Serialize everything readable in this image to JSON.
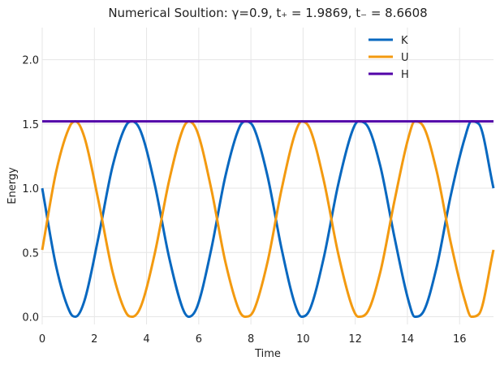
{
  "chart_data": {
    "type": "line",
    "title": "Numerical Soultion: γ=0.9, t₊ = 1.9869, t₋ = 8.6608",
    "xlabel": "Time",
    "ylabel": "Energy",
    "xlim": [
      0,
      17.3
    ],
    "ylim": [
      -0.06,
      2.25
    ],
    "xticks": [
      0,
      2,
      4,
      6,
      8,
      10,
      12,
      14,
      16
    ],
    "yticks": [
      0.0,
      0.5,
      1.0,
      1.5,
      2.0
    ],
    "xtick_labels": [
      "0",
      "2",
      "4",
      "6",
      "8",
      "10",
      "12",
      "14",
      "16"
    ],
    "ytick_labels": [
      "0.0",
      "0.5",
      "1.0",
      "1.5",
      "2.0"
    ],
    "grid": true,
    "legend_position": "top-right",
    "series": [
      {
        "name": "K",
        "color": "#0868c0",
        "x": [
          0,
          0.54,
          1.08,
          1.27,
          1.62,
          2.16,
          2.7,
          3.24,
          3.45,
          3.78,
          4.32,
          4.86,
          5.4,
          5.62,
          5.94,
          6.48,
          7.02,
          7.56,
          7.78,
          8.1,
          8.64,
          9.18,
          9.72,
          9.95,
          10.26,
          10.8,
          11.34,
          11.88,
          12.12,
          12.42,
          12.96,
          13.5,
          14.04,
          14.28,
          14.58,
          15.12,
          15.66,
          16.2,
          16.45,
          16.74,
          17.3
        ],
        "y": [
          1.0,
          0.386,
          0.029,
          0.0,
          0.125,
          0.622,
          1.173,
          1.497,
          1.52,
          1.441,
          1.023,
          0.466,
          0.057,
          0.0,
          0.078,
          0.525,
          1.092,
          1.475,
          1.52,
          1.475,
          1.092,
          0.525,
          0.078,
          0.0,
          0.057,
          0.466,
          1.023,
          1.441,
          1.52,
          1.497,
          1.173,
          0.622,
          0.125,
          0.0,
          0.029,
          0.386,
          0.942,
          1.391,
          1.52,
          1.5,
          1.0
        ]
      },
      {
        "name": "U",
        "color": "#f39a10",
        "x": [
          0,
          0.54,
          1.08,
          1.27,
          1.62,
          2.16,
          2.7,
          3.24,
          3.45,
          3.78,
          4.32,
          4.86,
          5.4,
          5.62,
          5.94,
          6.48,
          7.02,
          7.56,
          7.78,
          8.1,
          8.64,
          9.18,
          9.72,
          9.95,
          10.26,
          10.8,
          11.34,
          11.88,
          12.12,
          12.42,
          12.96,
          13.5,
          14.04,
          14.28,
          14.58,
          15.12,
          15.66,
          16.2,
          16.45,
          16.74,
          17.3
        ],
        "y": [
          0.52,
          1.134,
          1.491,
          1.52,
          1.395,
          0.898,
          0.347,
          0.023,
          0.0,
          0.079,
          0.497,
          1.054,
          1.463,
          1.52,
          1.442,
          0.995,
          0.428,
          0.045,
          0.0,
          0.045,
          0.428,
          0.995,
          1.442,
          1.52,
          1.463,
          1.054,
          0.497,
          0.079,
          0.0,
          0.023,
          0.347,
          0.898,
          1.395,
          1.52,
          1.491,
          1.134,
          0.578,
          0.129,
          0.0,
          0.02,
          0.52
        ]
      },
      {
        "name": "H",
        "color": "#5200a8",
        "x": [
          0,
          17.3
        ],
        "y": [
          1.52,
          1.52
        ]
      }
    ]
  }
}
